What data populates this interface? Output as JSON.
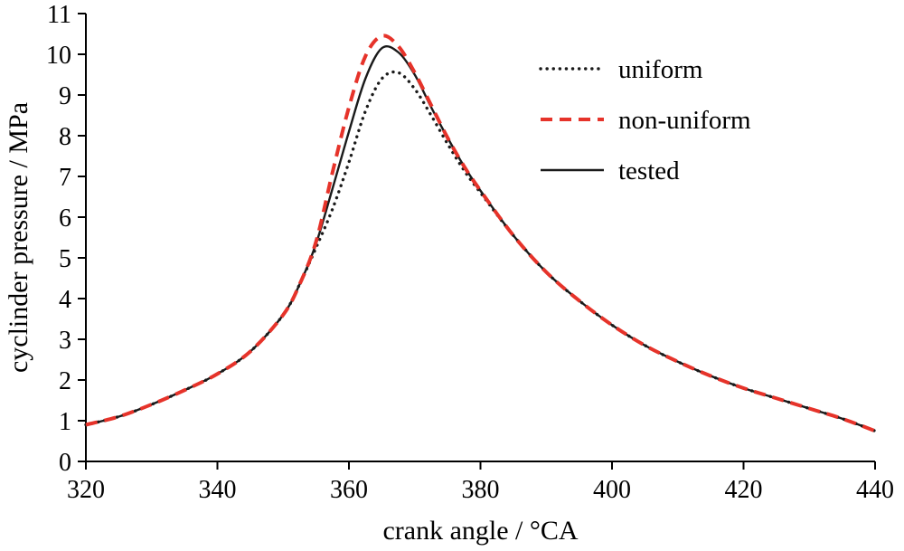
{
  "chart_data": {
    "type": "line",
    "title": "",
    "xlabel": "crank angle / °CA",
    "ylabel": "cyclinder pressure / MPa",
    "xlim": [
      320,
      440
    ],
    "ylim": [
      0,
      11
    ],
    "xticks": [
      320,
      340,
      360,
      380,
      400,
      420,
      440
    ],
    "yticks": [
      0,
      1,
      2,
      3,
      4,
      5,
      6,
      7,
      8,
      9,
      10,
      11
    ],
    "grid": false,
    "legend_position": "upper right inside",
    "x": [
      320,
      325,
      330,
      335,
      340,
      345,
      350,
      352.5,
      355,
      357.5,
      360,
      362.5,
      365,
      367.5,
      370,
      372.5,
      375,
      377.5,
      380,
      385,
      390,
      395,
      400,
      405,
      410,
      415,
      420,
      425,
      430,
      435,
      440
    ],
    "series": [
      {
        "name": "uniform",
        "color": "#1a1a1a",
        "dash": "dotted",
        "values": [
          0.9,
          1.1,
          1.4,
          1.75,
          2.15,
          2.7,
          3.6,
          4.35,
          5.25,
          6.2,
          7.35,
          8.6,
          9.4,
          9.55,
          9.15,
          8.5,
          7.8,
          7.15,
          6.6,
          5.55,
          4.65,
          3.95,
          3.35,
          2.85,
          2.45,
          2.1,
          1.8,
          1.55,
          1.3,
          1.05,
          0.75
        ]
      },
      {
        "name": "non-uniform",
        "color": "#e6332a",
        "dash": "dashed",
        "values": [
          0.9,
          1.1,
          1.4,
          1.75,
          2.15,
          2.7,
          3.6,
          4.35,
          5.4,
          7.1,
          8.7,
          9.95,
          10.45,
          10.2,
          9.55,
          8.75,
          7.95,
          7.25,
          6.65,
          5.55,
          4.65,
          3.95,
          3.35,
          2.85,
          2.45,
          2.1,
          1.8,
          1.55,
          1.3,
          1.05,
          0.75
        ]
      },
      {
        "name": "tested",
        "color": "#1a1a1a",
        "dash": "solid",
        "values": [
          0.9,
          1.1,
          1.4,
          1.75,
          2.15,
          2.7,
          3.6,
          4.35,
          5.35,
          6.7,
          8.1,
          9.4,
          10.15,
          10.05,
          9.5,
          8.7,
          7.95,
          7.25,
          6.65,
          5.55,
          4.65,
          3.95,
          3.35,
          2.85,
          2.45,
          2.1,
          1.8,
          1.55,
          1.3,
          1.05,
          0.75
        ]
      }
    ],
    "draw_order": [
      0,
      2,
      1
    ]
  }
}
